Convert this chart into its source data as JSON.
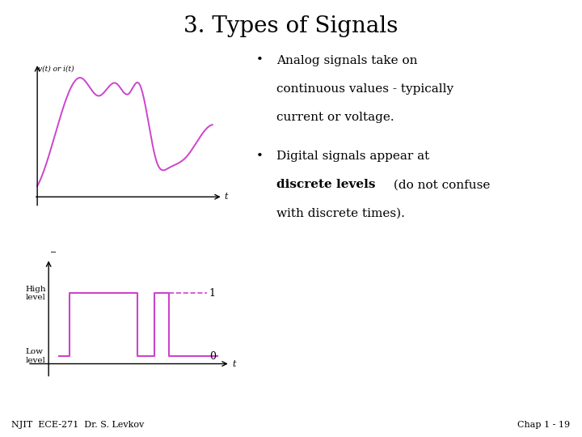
{
  "title": "3. Types of Signals",
  "title_fontsize": 20,
  "background_color": "#ffffff",
  "analog_label": "v(t) or i(t)",
  "analog_xlabel": "t",
  "digital_xlabel": "t",
  "high_label": "High\nlevel",
  "low_label": "Low\nlevel",
  "signal_color": "#cc44cc",
  "axis_color": "#000000",
  "text_color": "#000000",
  "footer_left": "NJIT  ECE-271  Dr. S. Levkov",
  "footer_right": "Chap 1 - 19",
  "footer_fontsize": 8,
  "bullet1_line1": "Analog signals take on",
  "bullet1_line2": "continuous values - typically",
  "bullet1_line3": "current or voltage.",
  "bullet2_line1": "Digital signals appear at",
  "bullet2_bold": "discrete levels",
  "bullet2_line2_after": " (do not confuse",
  "bullet2_line3": "with discrete times).",
  "text_fontsize": 11
}
